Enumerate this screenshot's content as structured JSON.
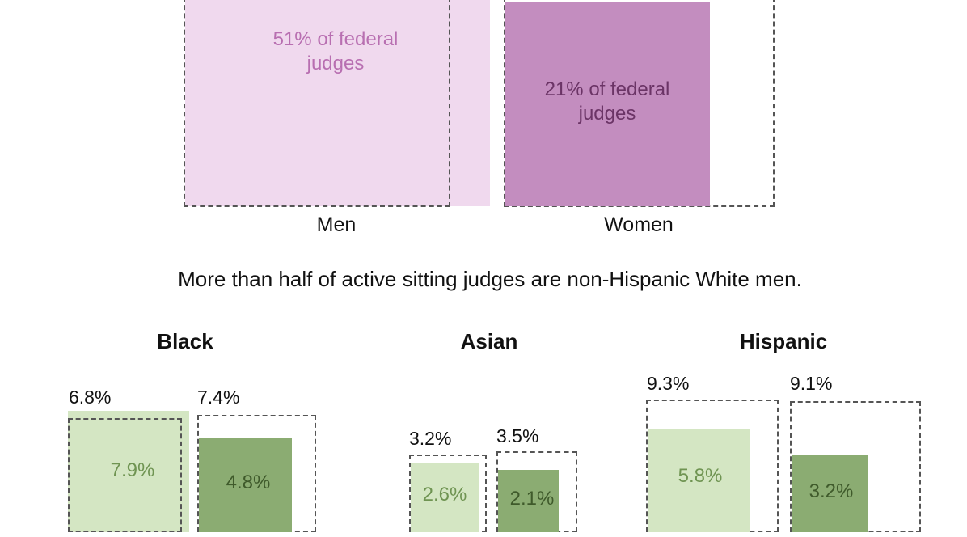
{
  "colors": {
    "men_fill": "#f0d9ee",
    "women_fill": "#c38dbf",
    "men_text": "#b86fb1",
    "women_text": "#6b3466",
    "green_light": "#d4e6c3",
    "green_dark": "#8bac72",
    "green_light_text": "#6f9452",
    "green_dark_text": "#3f5a2b"
  },
  "chart_data": [
    {
      "type": "area",
      "categories": [
        "Men",
        "Women"
      ],
      "labels": [
        "51% of federal judges",
        "21% of federal judges"
      ],
      "values": [
        51,
        21
      ],
      "title": ""
    },
    {
      "type": "bar",
      "subtitle": "More than half of active sitting judges are non-Hispanic White men.",
      "groups": [
        {
          "name": "Black",
          "bars": [
            {
              "outline_label": "6.8%",
              "outline": 6.8,
              "fill_label": "7.9%",
              "fill": 7.9,
              "shade": "light"
            },
            {
              "outline_label": "7.4%",
              "outline": 7.4,
              "fill_label": "4.8%",
              "fill": 4.8,
              "shade": "dark"
            }
          ]
        },
        {
          "name": "Asian",
          "bars": [
            {
              "outline_label": "3.2%",
              "outline": 3.2,
              "fill_label": "2.6%",
              "fill": 2.6,
              "shade": "light"
            },
            {
              "outline_label": "3.5%",
              "outline": 3.5,
              "fill_label": "2.1%",
              "fill": 2.1,
              "shade": "dark"
            }
          ]
        },
        {
          "name": "Hispanic",
          "bars": [
            {
              "outline_label": "9.3%",
              "outline": 9.3,
              "fill_label": "5.8%",
              "fill": 5.8,
              "shade": "light"
            },
            {
              "outline_label": "9.1%",
              "outline": 9.1,
              "fill_label": "3.2%",
              "fill": 3.2,
              "shade": "dark"
            }
          ]
        }
      ]
    }
  ]
}
